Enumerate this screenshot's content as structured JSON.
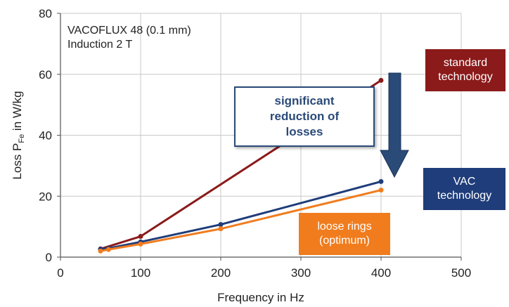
{
  "chart_data": {
    "type": "line",
    "xlabel": "Frequency in Hz",
    "ylabel_main": "Loss P",
    "ylabel_sub": "Fe",
    "ylabel_tail": " in W/kg",
    "xlim": [
      0,
      500
    ],
    "ylim": [
      0,
      80
    ],
    "xticks": [
      0,
      100,
      200,
      300,
      400,
      500
    ],
    "yticks": [
      0,
      20,
      40,
      60,
      80
    ],
    "grid": true,
    "series": [
      {
        "key": "standard",
        "color": "#8b1a1a",
        "x": [
          50,
          100,
          400
        ],
        "y": [
          2.7,
          6.8,
          58
        ]
      },
      {
        "key": "vac",
        "color": "#1f3d7a",
        "x": [
          50,
          60,
          100,
          200,
          400
        ],
        "y": [
          2.6,
          2.9,
          5.0,
          10.7,
          24.8
        ]
      },
      {
        "key": "loose",
        "color": "#f07c1e",
        "x": [
          50,
          60,
          100,
          200,
          400
        ],
        "y": [
          2.0,
          2.5,
          4.3,
          9.3,
          22.0
        ]
      }
    ],
    "annotations": {
      "material": "VACOFLUX 48 (0.1 mm)",
      "induction": "Induction 2 T",
      "standard_label": [
        "standard",
        "technology"
      ],
      "vac_label": [
        "VAC",
        "technology"
      ],
      "loose_label": [
        "loose rings",
        "(optimum)"
      ],
      "reduction_label": [
        "significant",
        "reduction of",
        "losses"
      ]
    }
  },
  "colors": {
    "standard": "#8b1a1a",
    "vac": "#1f3d7a",
    "loose": "#f07c1e",
    "arrow": "#2a4a78",
    "reduction_text": "#2a4a78"
  }
}
